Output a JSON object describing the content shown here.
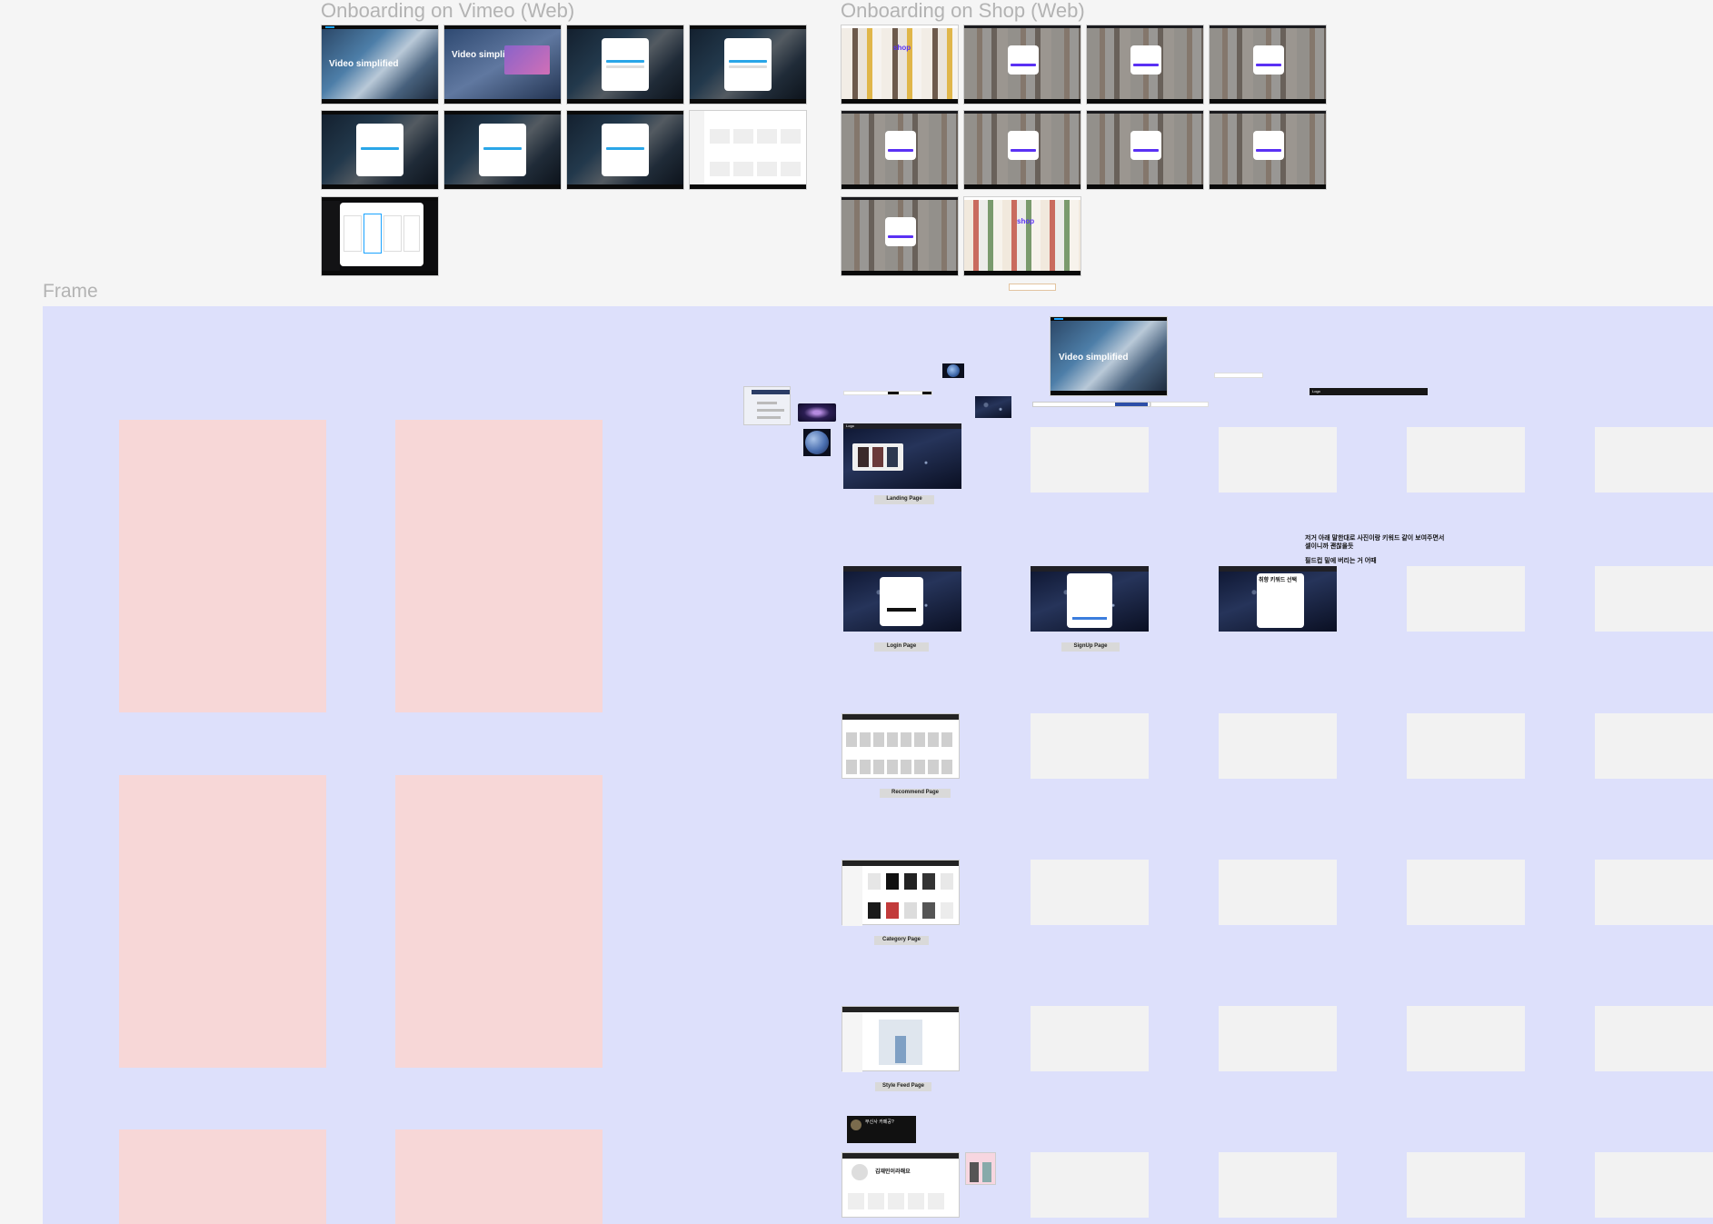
{
  "sections": {
    "vimeo_title": "Onboarding on Vimeo (Web)",
    "shop_title": "Onboarding on Shop (Web)",
    "frame_title": "Frame"
  },
  "vimeo_screens": {
    "hero_text_1": "Video simplified",
    "hero_text_2": "Video simplified",
    "faded_text": "Video simpl"
  },
  "shop_screens": {
    "brand": "shop"
  },
  "wireframes": {
    "landing_label": "Landing Page",
    "login_label": "Login Page",
    "signup_label": "SignUp Page",
    "recommend_label": "Recommend Page",
    "category_label": "Category Page",
    "stylefeed_label": "Style Feed Page",
    "logo_text": "Logo",
    "mini_hero_text": "Video simplified",
    "keyword_modal_title": "취향 키워드 선택",
    "profile_name": "김재민이라해요",
    "profile_card_title": "무신사 카페공?"
  },
  "notes": {
    "line1": "저거 아래 말한대로 사진이랑 키워드 같이 보여주면서",
    "line2": "셀이니까 괜찮을듯",
    "line3": "필드컵 밑에 버리는 거 어때"
  },
  "colors": {
    "frame_bg": "#dde0fb",
    "pink_block": "#f7d7d7",
    "placeholder": "#f2f2f2",
    "vimeo_accent": "#1aa3ff",
    "shop_brand": "#5a31f4"
  }
}
